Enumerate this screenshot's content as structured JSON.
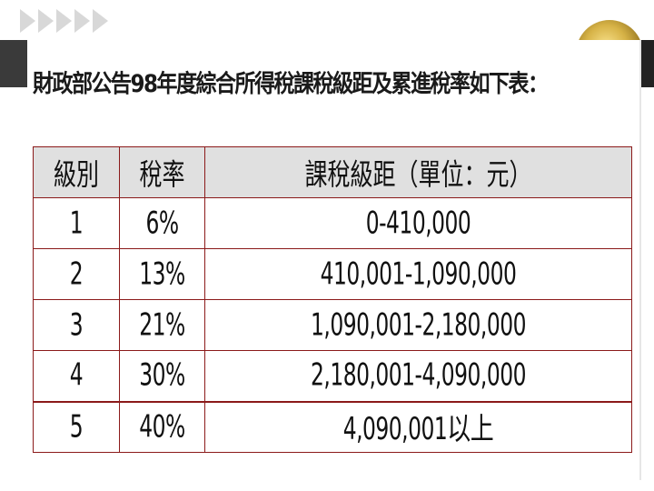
{
  "slide": {
    "title": "財政部公告98年度綜合所得稅課稅級距及累進稅率如下表："
  },
  "table": {
    "headers": [
      "級別",
      "稅率",
      "課稅級距（單位：元）"
    ],
    "rows": [
      [
        "1",
        "6%",
        "0-410,000"
      ],
      [
        "2",
        "13%",
        "410,001-1,090,000"
      ],
      [
        "3",
        "21%",
        "1,090,001-2,180,000"
      ],
      [
        "4",
        "30%",
        "2,180,001-4,090,000"
      ],
      [
        "5",
        "40%",
        "4,090,001以上"
      ]
    ]
  },
  "colors": {
    "border": "#8b1a1a",
    "header_bg": "#e0e0e0",
    "accent_dark": "#3a3a3a"
  }
}
